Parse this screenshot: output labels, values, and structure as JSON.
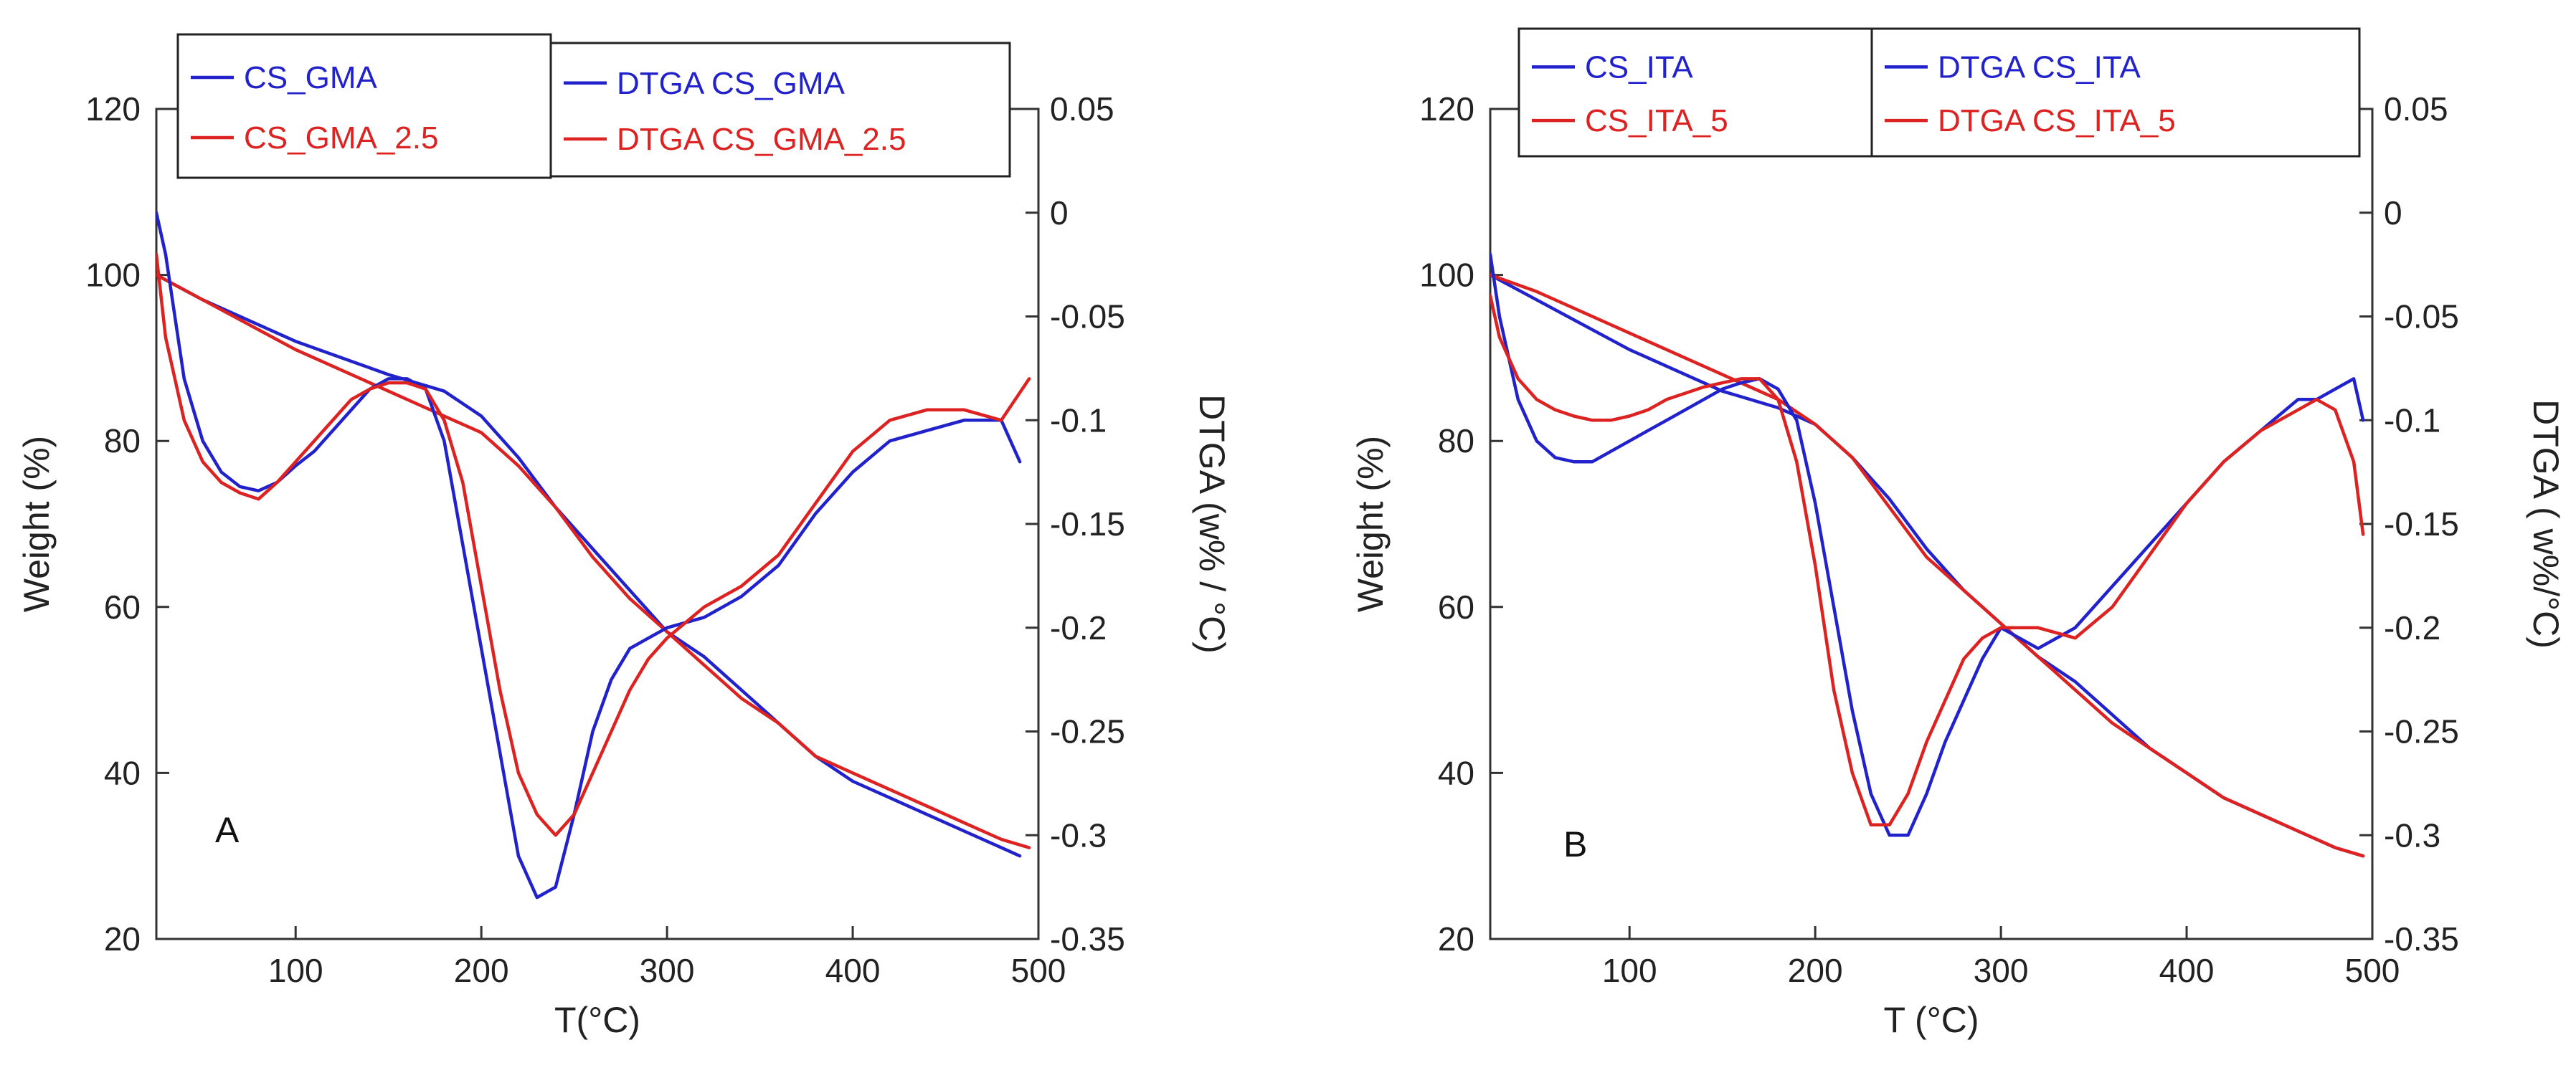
{
  "chart_data": [
    {
      "type": "line",
      "panel_label": "A",
      "xlabel": "T(°C)",
      "ylabel": "Weight (%)",
      "y2label": "DTGA (w% / °C)",
      "xlim": [
        25,
        500
      ],
      "ylim": [
        20,
        120
      ],
      "y2lim": [
        -0.35,
        0.05
      ],
      "xticks": [
        100,
        200,
        300,
        400,
        500
      ],
      "yticks": [
        20,
        40,
        60,
        80,
        100,
        120
      ],
      "y2ticks": [
        -0.35,
        -0.3,
        -0.25,
        -0.2,
        -0.15,
        -0.1,
        -0.05,
        0,
        0.05
      ],
      "series": [
        {
          "name": "CS_GMA",
          "axis": "left",
          "color": "#2222cc",
          "x": [
            25,
            50,
            100,
            150,
            180,
            200,
            220,
            240,
            260,
            280,
            300,
            320,
            340,
            360,
            380,
            400,
            420,
            440,
            460,
            480,
            490
          ],
          "y": [
            100,
            97,
            92,
            88,
            86,
            83,
            78,
            72,
            67,
            62,
            57,
            54,
            50,
            46,
            42,
            39,
            37,
            35,
            33,
            31,
            30
          ]
        },
        {
          "name": "CS_GMA_2.5",
          "axis": "left",
          "color": "#dd2222",
          "x": [
            25,
            50,
            100,
            150,
            180,
            200,
            220,
            240,
            260,
            280,
            300,
            320,
            340,
            360,
            380,
            400,
            420,
            440,
            460,
            480,
            495
          ],
          "y": [
            100,
            97,
            91,
            86,
            83,
            81,
            77,
            72,
            66,
            61,
            57,
            53,
            49,
            46,
            42,
            40,
            38,
            36,
            34,
            32,
            31
          ]
        },
        {
          "name": "DTGA  CS_GMA",
          "axis": "right",
          "color": "#2222cc",
          "x": [
            25,
            30,
            40,
            50,
            60,
            70,
            80,
            90,
            100,
            110,
            120,
            130,
            140,
            150,
            160,
            170,
            180,
            190,
            200,
            210,
            220,
            230,
            240,
            250,
            260,
            270,
            280,
            290,
            300,
            320,
            340,
            360,
            380,
            400,
            420,
            440,
            460,
            480,
            490
          ],
          "y": [
            0.0,
            -0.02,
            -0.08,
            -0.11,
            -0.125,
            -0.132,
            -0.134,
            -0.13,
            -0.122,
            -0.115,
            -0.105,
            -0.095,
            -0.085,
            -0.08,
            -0.08,
            -0.085,
            -0.11,
            -0.16,
            -0.21,
            -0.26,
            -0.31,
            -0.33,
            -0.325,
            -0.29,
            -0.25,
            -0.225,
            -0.21,
            -0.205,
            -0.2,
            -0.195,
            -0.185,
            -0.17,
            -0.145,
            -0.125,
            -0.11,
            -0.105,
            -0.1,
            -0.1,
            -0.12
          ]
        },
        {
          "name": "DTGA CS_GMA_2.5",
          "axis": "right",
          "color": "#dd2222",
          "x": [
            25,
            30,
            40,
            50,
            60,
            70,
            80,
            90,
            100,
            110,
            120,
            130,
            140,
            150,
            160,
            170,
            180,
            190,
            200,
            210,
            220,
            230,
            240,
            250,
            260,
            270,
            280,
            290,
            300,
            320,
            340,
            360,
            380,
            400,
            420,
            440,
            460,
            480,
            495
          ],
          "y": [
            -0.02,
            -0.06,
            -0.1,
            -0.12,
            -0.13,
            -0.135,
            -0.138,
            -0.13,
            -0.12,
            -0.11,
            -0.1,
            -0.09,
            -0.085,
            -0.082,
            -0.082,
            -0.085,
            -0.1,
            -0.13,
            -0.18,
            -0.23,
            -0.27,
            -0.29,
            -0.3,
            -0.29,
            -0.27,
            -0.25,
            -0.23,
            -0.215,
            -0.205,
            -0.19,
            -0.18,
            -0.165,
            -0.14,
            -0.115,
            -0.1,
            -0.095,
            -0.095,
            -0.1,
            -0.08
          ]
        }
      ],
      "legends": [
        {
          "entries": [
            "CS_GMA",
            "CS_GMA_2.5"
          ]
        },
        {
          "entries": [
            "DTGA  CS_GMA",
            "DTGA CS_GMA_2.5"
          ]
        }
      ]
    },
    {
      "type": "line",
      "panel_label": "B",
      "xlabel": "T (°C)",
      "ylabel": "Weight (%)",
      "y2label": "DTGA ( w%/°C)",
      "xlim": [
        25,
        500
      ],
      "ylim": [
        20,
        120
      ],
      "y2lim": [
        -0.35,
        0.05
      ],
      "xticks": [
        100,
        200,
        300,
        400,
        500
      ],
      "yticks": [
        20,
        40,
        60,
        80,
        100,
        120
      ],
      "y2ticks": [
        -0.35,
        -0.3,
        -0.25,
        -0.2,
        -0.15,
        -0.1,
        -0.05,
        0,
        0.05
      ],
      "series": [
        {
          "name": "CS_ITA",
          "axis": "left",
          "color": "#2222cc",
          "x": [
            25,
            50,
            100,
            150,
            180,
            200,
            220,
            240,
            260,
            280,
            300,
            320,
            340,
            360,
            380,
            400,
            420,
            440,
            460,
            480,
            495
          ],
          "y": [
            100,
            97,
            91,
            86,
            84,
            82,
            78,
            73,
            67,
            62,
            58,
            54,
            51,
            47,
            43,
            40,
            37,
            35,
            33,
            31,
            30
          ]
        },
        {
          "name": "CS_ITA_5",
          "axis": "left",
          "color": "#dd2222",
          "x": [
            25,
            50,
            100,
            150,
            180,
            200,
            220,
            240,
            260,
            280,
            300,
            320,
            340,
            360,
            380,
            400,
            420,
            440,
            460,
            480,
            495
          ],
          "y": [
            100,
            98,
            93,
            88,
            85,
            82,
            78,
            72,
            66,
            62,
            58,
            54,
            50,
            46,
            43,
            40,
            37,
            35,
            33,
            31,
            30
          ]
        },
        {
          "name": "DTGA CS_ITA",
          "axis": "right",
          "color": "#2222cc",
          "x": [
            25,
            30,
            40,
            50,
            60,
            70,
            80,
            90,
            100,
            110,
            120,
            130,
            140,
            150,
            160,
            170,
            180,
            190,
            200,
            210,
            220,
            230,
            240,
            250,
            260,
            270,
            280,
            290,
            300,
            320,
            340,
            360,
            380,
            400,
            420,
            440,
            460,
            470,
            480,
            490,
            495
          ],
          "y": [
            -0.02,
            -0.05,
            -0.09,
            -0.11,
            -0.118,
            -0.12,
            -0.12,
            -0.115,
            -0.11,
            -0.105,
            -0.1,
            -0.095,
            -0.09,
            -0.085,
            -0.082,
            -0.08,
            -0.085,
            -0.1,
            -0.14,
            -0.19,
            -0.24,
            -0.28,
            -0.3,
            -0.3,
            -0.28,
            -0.255,
            -0.235,
            -0.215,
            -0.2,
            -0.21,
            -0.2,
            -0.18,
            -0.16,
            -0.14,
            -0.12,
            -0.105,
            -0.09,
            -0.09,
            -0.085,
            -0.08,
            -0.1
          ]
        },
        {
          "name": "DTGA CS_ITA_5",
          "axis": "right",
          "color": "#dd2222",
          "x": [
            25,
            30,
            40,
            50,
            60,
            70,
            80,
            90,
            100,
            110,
            120,
            130,
            140,
            150,
            160,
            170,
            180,
            190,
            200,
            210,
            220,
            230,
            240,
            250,
            260,
            270,
            280,
            290,
            300,
            320,
            340,
            360,
            380,
            400,
            420,
            440,
            460,
            470,
            480,
            490,
            495
          ],
          "y": [
            -0.04,
            -0.06,
            -0.08,
            -0.09,
            -0.095,
            -0.098,
            -0.1,
            -0.1,
            -0.098,
            -0.095,
            -0.09,
            -0.087,
            -0.084,
            -0.082,
            -0.08,
            -0.08,
            -0.09,
            -0.12,
            -0.17,
            -0.23,
            -0.27,
            -0.295,
            -0.295,
            -0.28,
            -0.255,
            -0.235,
            -0.215,
            -0.205,
            -0.2,
            -0.2,
            -0.205,
            -0.19,
            -0.165,
            -0.14,
            -0.12,
            -0.105,
            -0.095,
            -0.09,
            -0.095,
            -0.12,
            -0.155
          ]
        }
      ],
      "legends": [
        {
          "entries": [
            "CS_ITA",
            "CS_ITA_5"
          ]
        },
        {
          "entries": [
            "DTGA CS_ITA",
            "DTGA CS_ITA_5"
          ]
        }
      ]
    }
  ]
}
